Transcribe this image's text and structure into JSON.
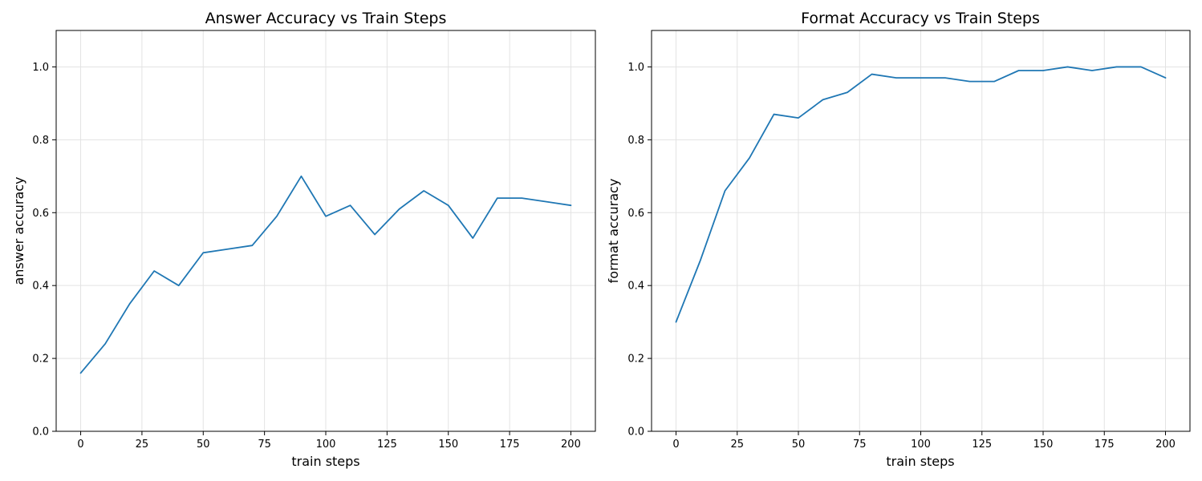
{
  "chart_data": [
    {
      "type": "line",
      "title": "Answer Accuracy vs Train Steps",
      "xlabel": "train steps",
      "ylabel": "answer accuracy",
      "xlim": [
        -10,
        210
      ],
      "ylim": [
        0,
        1.1
      ],
      "xticks": [
        0,
        25,
        50,
        75,
        100,
        125,
        150,
        175,
        200
      ],
      "xtick_labels": [
        "0",
        "25",
        "50",
        "75",
        "100",
        "125",
        "150",
        "175",
        "200"
      ],
      "yticks": [
        0.0,
        0.2,
        0.4,
        0.6,
        0.8,
        1.0
      ],
      "ytick_labels": [
        "0.0",
        "0.2",
        "0.4",
        "0.6",
        "0.8",
        "1.0"
      ],
      "grid": true,
      "series": [
        {
          "color": "#1f77b4",
          "x": [
            0,
            10,
            20,
            30,
            40,
            50,
            60,
            70,
            80,
            90,
            100,
            110,
            120,
            130,
            140,
            150,
            160,
            170,
            180,
            190,
            200
          ],
          "y": [
            0.16,
            0.24,
            0.35,
            0.44,
            0.4,
            0.49,
            0.5,
            0.51,
            0.59,
            0.7,
            0.59,
            0.62,
            0.54,
            0.61,
            0.66,
            0.62,
            0.53,
            0.64,
            0.64,
            0.63,
            0.62
          ]
        }
      ]
    },
    {
      "type": "line",
      "title": "Format Accuracy vs Train Steps",
      "xlabel": "train steps",
      "ylabel": "format accuracy",
      "xlim": [
        -10,
        210
      ],
      "ylim": [
        0,
        1.1
      ],
      "xticks": [
        0,
        25,
        50,
        75,
        100,
        125,
        150,
        175,
        200
      ],
      "xtick_labels": [
        "0",
        "25",
        "50",
        "75",
        "100",
        "125",
        "150",
        "175",
        "200"
      ],
      "yticks": [
        0.0,
        0.2,
        0.4,
        0.6,
        0.8,
        1.0
      ],
      "ytick_labels": [
        "0.0",
        "0.2",
        "0.4",
        "0.6",
        "0.8",
        "1.0"
      ],
      "grid": true,
      "series": [
        {
          "color": "#1f77b4",
          "x": [
            0,
            10,
            20,
            30,
            40,
            50,
            60,
            70,
            80,
            90,
            100,
            110,
            120,
            130,
            140,
            150,
            160,
            170,
            180,
            190,
            200
          ],
          "y": [
            0.3,
            0.47,
            0.66,
            0.75,
            0.87,
            0.86,
            0.91,
            0.93,
            0.98,
            0.97,
            0.97,
            0.97,
            0.96,
            0.96,
            0.99,
            0.99,
            1.0,
            0.99,
            1.0,
            1.0,
            0.97
          ]
        }
      ]
    }
  ]
}
